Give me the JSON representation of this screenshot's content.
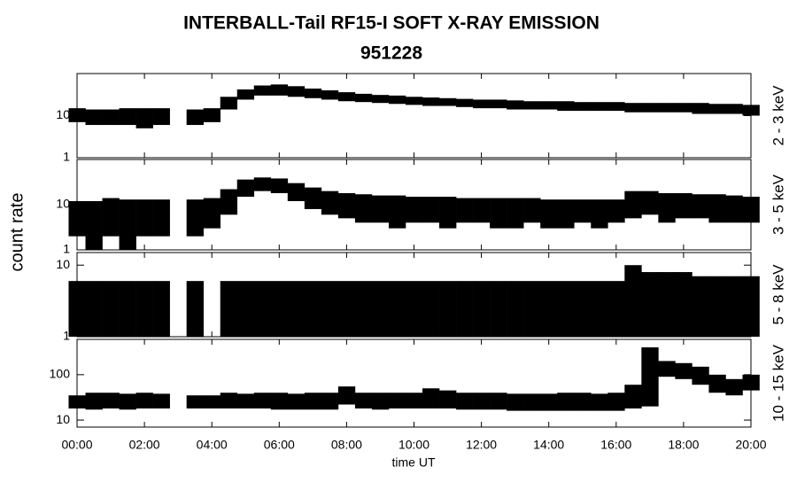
{
  "figure": {
    "title": "INTERBALL-Tail RF15-I SOFT X-RAY EMISSION",
    "subtitle": "951228",
    "ylabel": "count rate",
    "xlabel": "time UT",
    "xlim": [
      0,
      20
    ],
    "xticks": [
      {
        "value": 0,
        "label": "00:00"
      },
      {
        "value": 2,
        "label": "02:00"
      },
      {
        "value": 4,
        "label": "04:00"
      },
      {
        "value": 6,
        "label": "06:00"
      },
      {
        "value": 8,
        "label": "08:00"
      },
      {
        "value": 10,
        "label": "10:00"
      },
      {
        "value": 12,
        "label": "12:00"
      },
      {
        "value": 14,
        "label": "14:00"
      },
      {
        "value": 16,
        "label": "16:00"
      },
      {
        "value": 18,
        "label": "18:00"
      },
      {
        "value": 20,
        "label": "20:00"
      }
    ],
    "x": [
      0,
      0.5,
      1,
      1.5,
      2,
      2.5,
      3,
      3.5,
      4,
      4.5,
      5,
      5.5,
      6,
      6.5,
      7,
      7.5,
      8,
      8.5,
      9,
      9.5,
      10,
      10.5,
      11,
      11.5,
      12,
      12.5,
      13,
      13.5,
      14,
      14.5,
      15,
      15.5,
      16,
      16.5,
      17,
      17.5,
      18,
      18.5,
      19,
      19.5,
      20
    ]
  },
  "chart_data": [
    {
      "type": "band",
      "label": "2 - 3 keV",
      "log_y": true,
      "ylim": [
        1,
        100
      ],
      "yticks": [
        1,
        10
      ],
      "color": "#000000",
      "low": [
        7,
        6,
        6,
        6,
        5,
        6,
        null,
        6,
        7,
        14,
        24,
        30,
        30,
        28,
        26,
        24,
        22,
        21,
        20,
        19,
        18,
        17,
        17,
        16,
        15,
        15,
        14,
        14,
        14,
        13,
        13,
        13,
        13,
        12,
        12,
        12,
        12,
        11,
        11,
        11,
        10
      ],
      "high": [
        15,
        14,
        14,
        15,
        15,
        15,
        null,
        14,
        15,
        28,
        42,
        52,
        55,
        50,
        44,
        40,
        36,
        33,
        31,
        30,
        28,
        27,
        26,
        25,
        24,
        24,
        23,
        22,
        22,
        22,
        21,
        21,
        21,
        20,
        20,
        20,
        20,
        20,
        19,
        19,
        18
      ]
    },
    {
      "type": "band",
      "label": "3 - 5 keV",
      "log_y": true,
      "ylim": [
        1,
        100
      ],
      "yticks": [
        1,
        10
      ],
      "color": "#000000",
      "low": [
        2,
        1,
        2,
        1,
        2,
        2,
        null,
        2,
        3,
        6,
        15,
        20,
        18,
        12,
        8,
        6,
        5,
        4,
        4,
        3,
        4,
        4,
        3,
        4,
        4,
        3,
        3,
        4,
        3,
        3,
        4,
        3,
        4,
        5,
        6,
        4,
        5,
        5,
        4,
        4,
        4
      ],
      "high": [
        12,
        12,
        14,
        13,
        13,
        13,
        null,
        13,
        14,
        22,
        36,
        40,
        38,
        30,
        24,
        20,
        18,
        17,
        16,
        16,
        15,
        15,
        15,
        14,
        14,
        14,
        14,
        14,
        13,
        13,
        13,
        13,
        13,
        20,
        20,
        18,
        18,
        17,
        17,
        16,
        15
      ]
    },
    {
      "type": "band",
      "label": "5 - 8 keV",
      "log_y": true,
      "ylim": [
        1,
        15
      ],
      "yticks": [
        1,
        10
      ],
      "color": "#000000",
      "low": [
        1,
        1,
        1,
        1,
        1,
        1,
        null,
        1,
        null,
        1,
        1,
        1,
        1,
        1,
        1,
        1,
        1,
        1,
        1,
        1,
        1,
        1,
        1,
        1,
        1,
        1,
        1,
        1,
        1,
        1,
        1,
        1,
        1,
        1,
        1,
        1,
        1,
        1,
        1,
        1,
        1
      ],
      "high": [
        6,
        6,
        6,
        6,
        6,
        6,
        null,
        6,
        null,
        6,
        6,
        6,
        6,
        6,
        6,
        6,
        6,
        6,
        6,
        6,
        6,
        6,
        6,
        6,
        6,
        6,
        6,
        6,
        6,
        6,
        6,
        6,
        6,
        10,
        8,
        8,
        8,
        7,
        7,
        7,
        7
      ]
    },
    {
      "type": "band",
      "label": "10 - 15 keV",
      "log_y": true,
      "ylim": [
        7,
        600
      ],
      "yticks": [
        10,
        100
      ],
      "color": "#000000",
      "low": [
        18,
        17,
        18,
        17,
        18,
        18,
        null,
        18,
        18,
        18,
        18,
        18,
        17,
        17,
        17,
        17,
        22,
        18,
        17,
        18,
        18,
        18,
        18,
        17,
        17,
        17,
        16,
        16,
        16,
        16,
        16,
        16,
        16,
        18,
        20,
        90,
        80,
        60,
        40,
        35,
        45
      ],
      "high": [
        35,
        40,
        40,
        38,
        40,
        38,
        null,
        35,
        35,
        40,
        38,
        40,
        40,
        38,
        40,
        40,
        55,
        40,
        40,
        40,
        40,
        50,
        45,
        40,
        40,
        40,
        38,
        38,
        38,
        40,
        40,
        38,
        40,
        60,
        400,
        200,
        180,
        150,
        100,
        80,
        100
      ]
    }
  ]
}
